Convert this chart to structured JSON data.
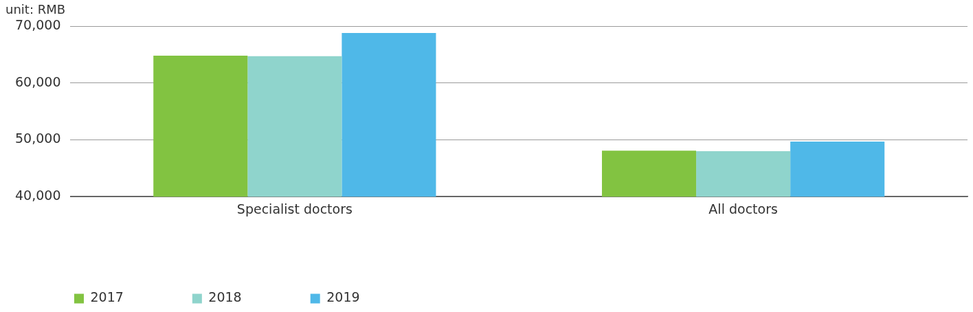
{
  "chart_data": {
    "type": "bar",
    "ylabel": "unit: RMB",
    "categories": [
      "Specialist doctors",
      "All doctors"
    ],
    "series": [
      {
        "name": "2017",
        "color": "#82c341",
        "values": [
          64800,
          48100
        ]
      },
      {
        "name": "2018",
        "color": "#8fd4cc",
        "values": [
          64700,
          48000
        ]
      },
      {
        "name": "2019",
        "color": "#4fb8e8",
        "values": [
          68800,
          49700
        ]
      }
    ],
    "ylim": [
      40000,
      70000
    ],
    "yticks": [
      {
        "value": 40000,
        "label": "40,000"
      },
      {
        "value": 50000,
        "label": "50,000"
      },
      {
        "value": 60000,
        "label": "60,000"
      },
      {
        "value": 70000,
        "label": "70,000"
      }
    ],
    "grid": "y",
    "legend": "bottom left"
  }
}
